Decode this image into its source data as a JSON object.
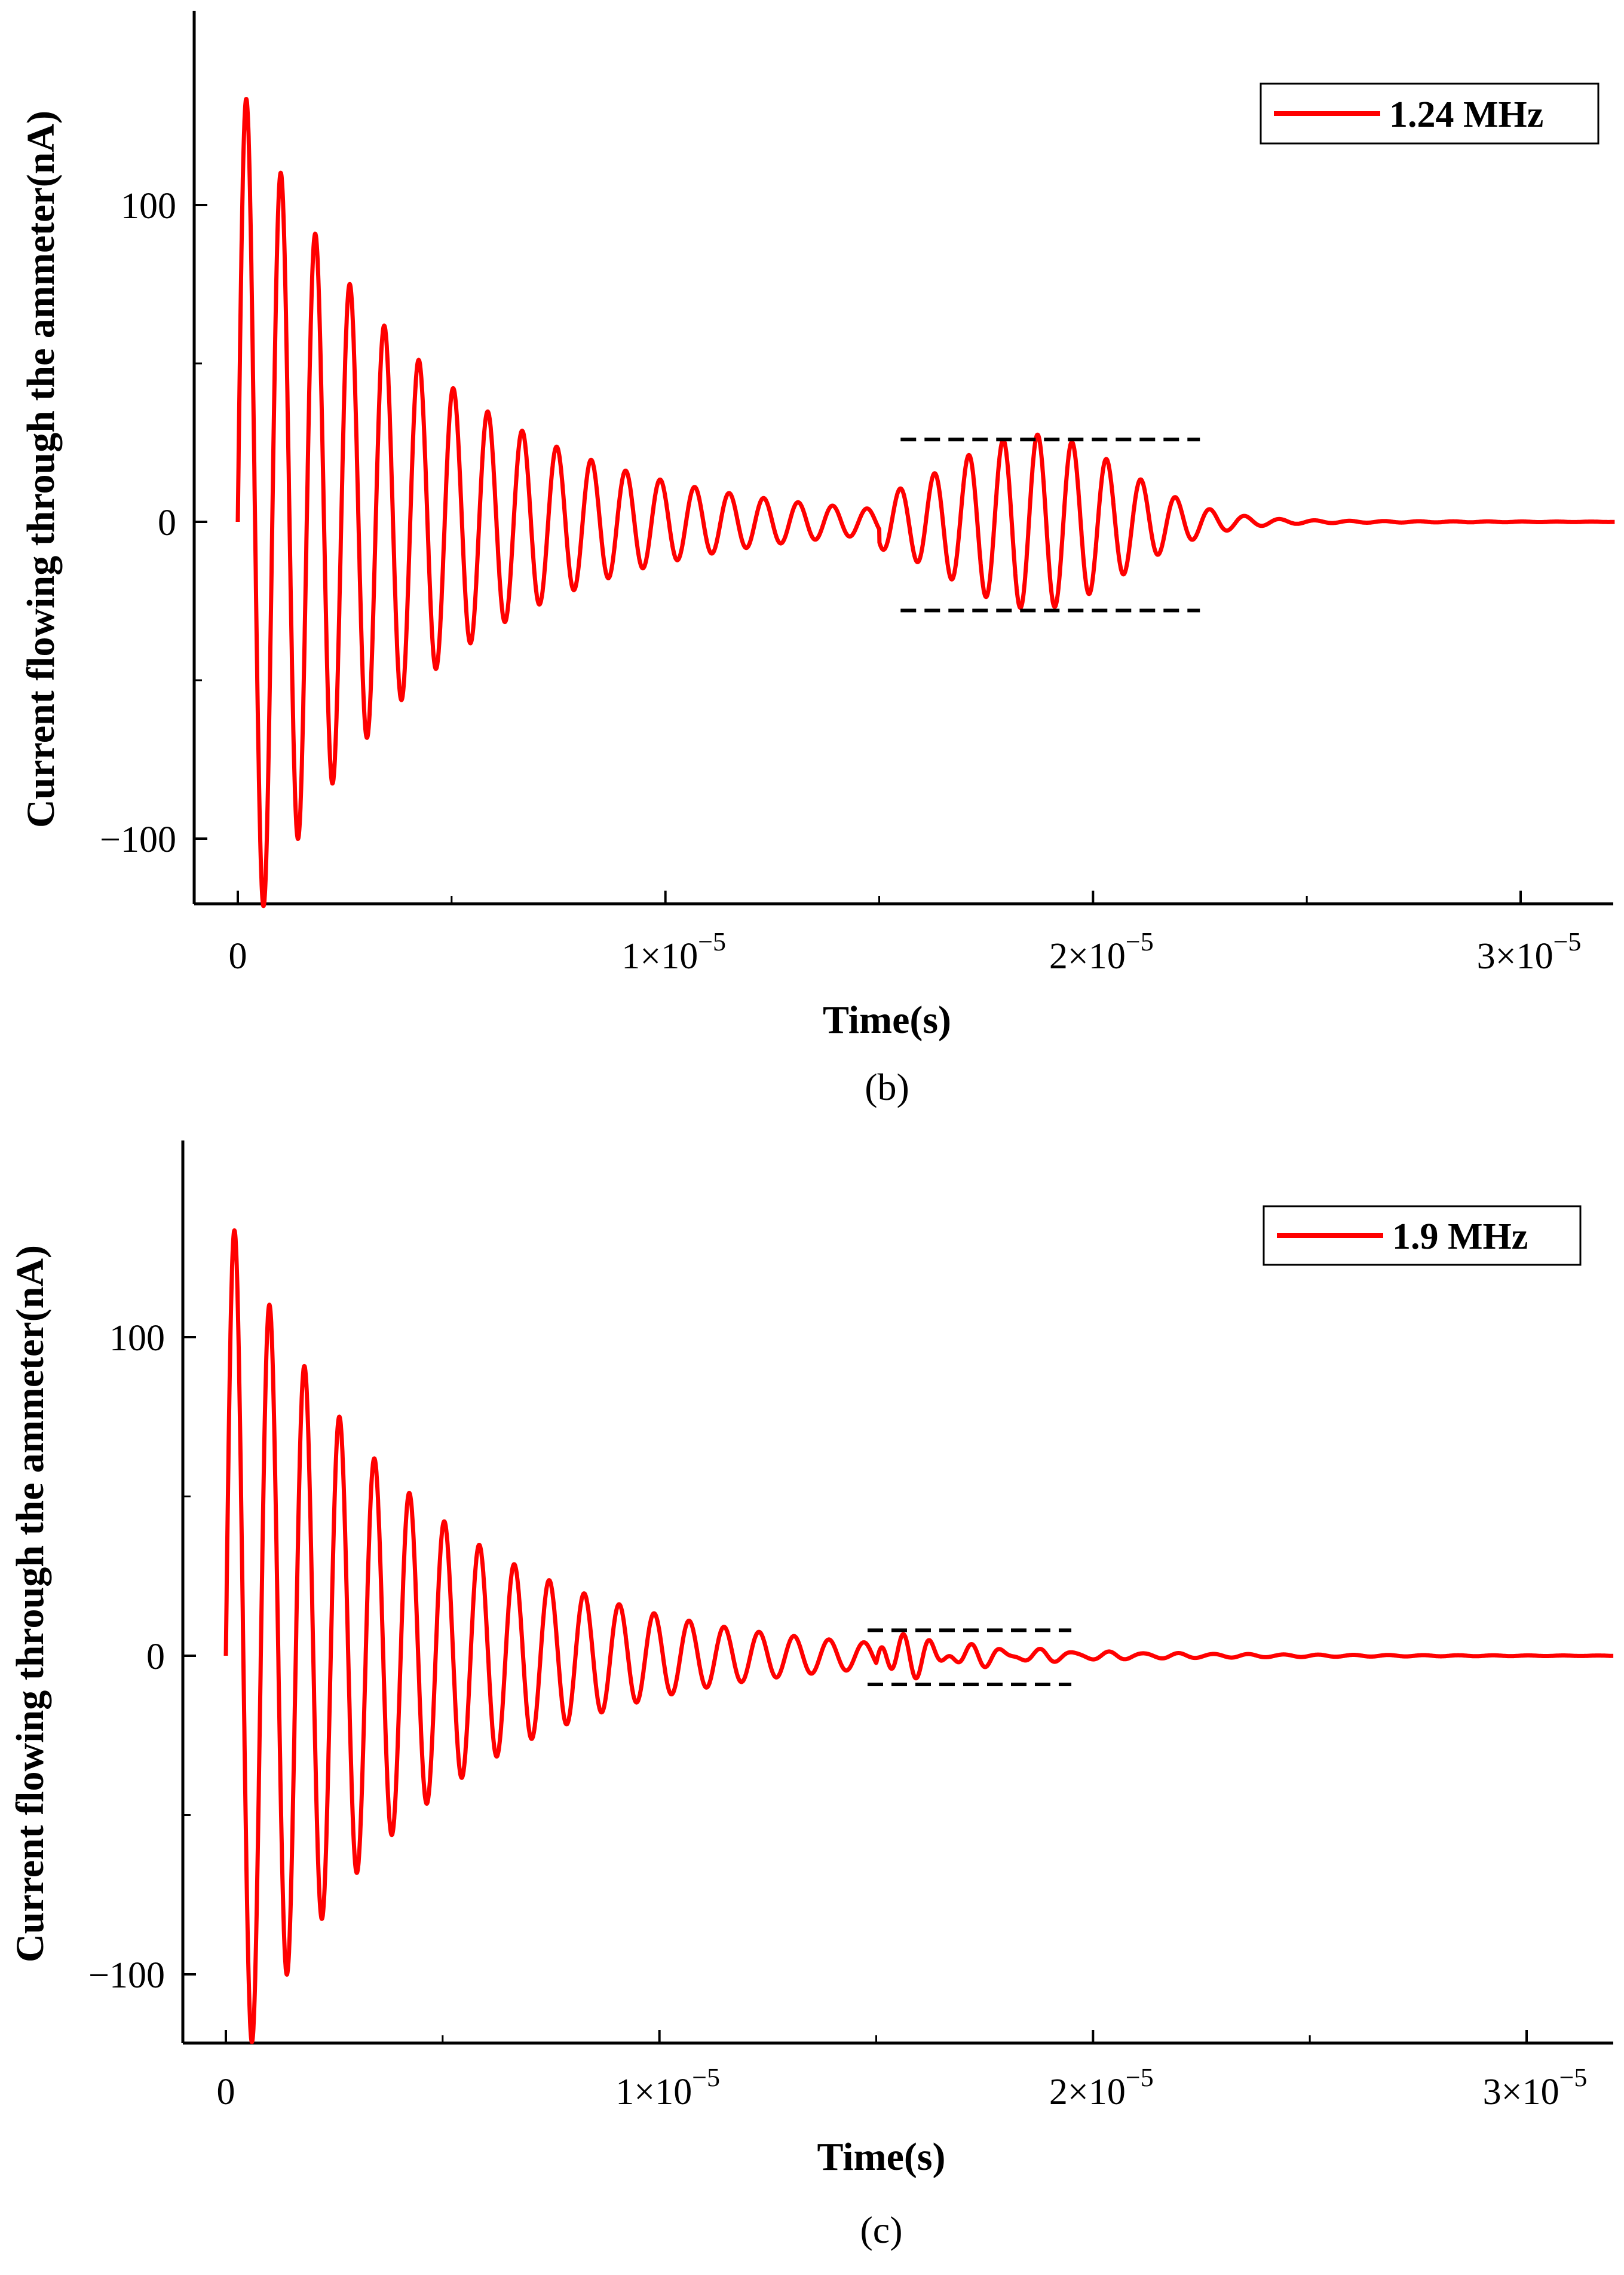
{
  "chart_data": [
    {
      "type": "line",
      "panel_label": "(b)",
      "xlabel": "Time(s)",
      "ylabel": "Current flowing through the ammeter(nA)",
      "xlim": [
        -1e-06,
        3.22e-05
      ],
      "ylim": [
        -120,
        160
      ],
      "x_ticks": [
        0,
        1e-05,
        2e-05,
        3e-05
      ],
      "x_tick_labels": [
        {
          "mantissa": "0",
          "base": "",
          "exponent": ""
        },
        {
          "mantissa": "1",
          "base": "10",
          "exponent": "−5"
        },
        {
          "mantissa": "2",
          "base": "10",
          "exponent": "−5"
        },
        {
          "mantissa": "3",
          "base": "10",
          "exponent": "−5"
        }
      ],
      "x_minor_ticks": [
        5e-06,
        1.5e-05,
        2.5e-05
      ],
      "y_ticks": [
        100,
        0,
        -100
      ],
      "y_tick_labels": [
        "100",
        "0",
        "−100"
      ],
      "y_minor_ticks": [
        50,
        -50
      ],
      "series": [
        {
          "name": "1.24 MHz",
          "color": "#ff0000",
          "components": [
            {
              "amplitude": 140,
              "frequency_hz": 1240000.0,
              "decay_s": 4.2e-06,
              "start_s": 0
            },
            {
              "amplitude": 26,
              "frequency_hz": 1240000.0,
              "center_s": 1.87e-05,
              "width_s": 2e-06,
              "start_s": 1.5e-05
            }
          ]
        }
      ],
      "envelope_guides": [
        {
          "color": "#000000",
          "x_start": 1.55e-05,
          "x_end": 2.25e-05,
          "y": 26,
          "style": "dashed"
        },
        {
          "color": "#000000",
          "x_start": 1.55e-05,
          "x_end": 2.25e-05,
          "y": -28,
          "style": "dashed"
        }
      ],
      "legend": {
        "position": "top-right",
        "entries": [
          "1.24 MHz"
        ]
      }
    },
    {
      "type": "line",
      "panel_label": "(c)",
      "xlabel": "Time(s)",
      "ylabel": "Current flowing through the ammeter(nA)",
      "xlim": [
        -1e-06,
        3.2e-05
      ],
      "ylim": [
        -120,
        160
      ],
      "x_ticks": [
        0,
        1e-05,
        2e-05,
        3e-05
      ],
      "x_tick_labels": [
        {
          "mantissa": "0",
          "base": "",
          "exponent": ""
        },
        {
          "mantissa": "1",
          "base": "10",
          "exponent": "−5"
        },
        {
          "mantissa": "2",
          "base": "10",
          "exponent": "−5"
        },
        {
          "mantissa": "3",
          "base": "10",
          "exponent": "−5"
        }
      ],
      "x_minor_ticks": [
        5e-06,
        1.5e-05,
        2.5e-05
      ],
      "y_ticks": [
        100,
        0,
        -100
      ],
      "y_tick_labels": [
        "100",
        "0",
        "−100"
      ],
      "y_minor_ticks": [
        50,
        -50
      ],
      "series": [
        {
          "name": "1.9 MHz",
          "color": "#ff0000",
          "components": [
            {
              "amplitude": 140,
              "frequency_hz": 1240000.0,
              "decay_s": 4.2e-06,
              "start_s": 0
            },
            {
              "amplitude": 7,
              "frequency_hz": 1900000.0,
              "decay_s": 1.6e-06,
              "start_s": 1.5e-05
            }
          ]
        }
      ],
      "envelope_guides": [
        {
          "color": "#000000",
          "x_start": 1.48e-05,
          "x_end": 1.95e-05,
          "y": 8,
          "style": "dashed"
        },
        {
          "color": "#000000",
          "x_start": 1.48e-05,
          "x_end": 1.95e-05,
          "y": -9,
          "style": "dashed"
        }
      ],
      "legend": {
        "position": "top-right",
        "entries": [
          "1.9 MHz"
        ]
      }
    }
  ]
}
